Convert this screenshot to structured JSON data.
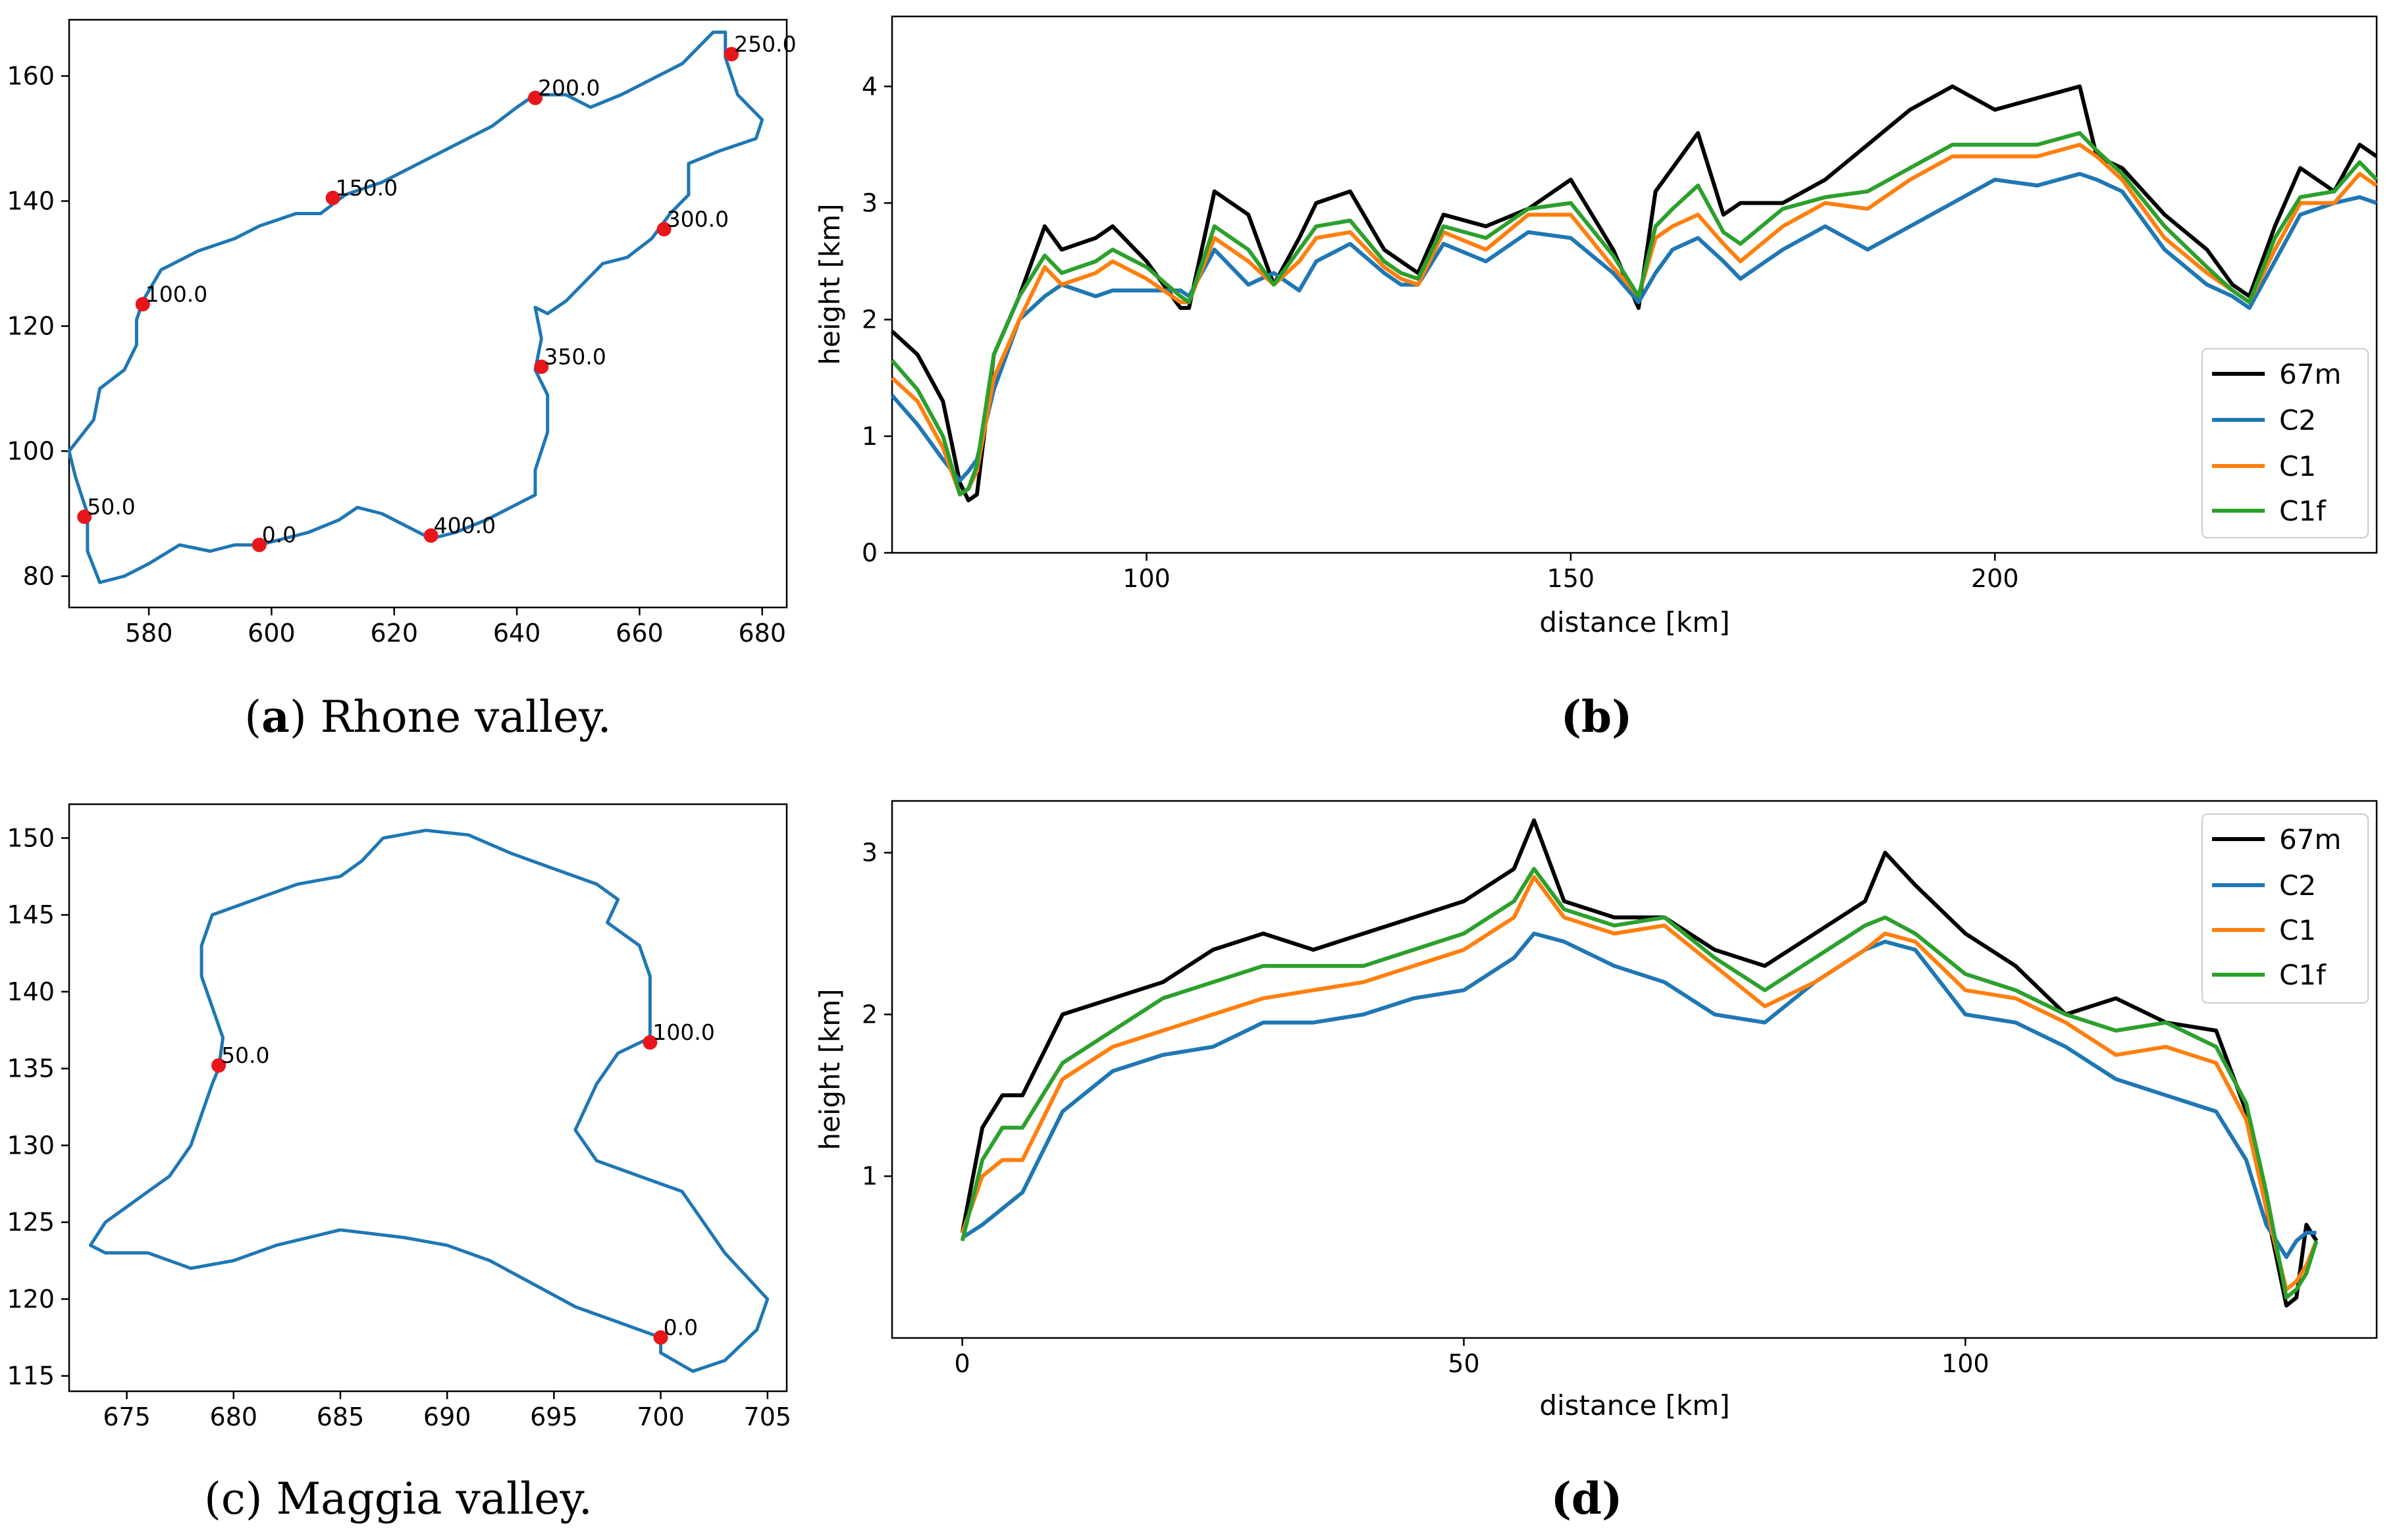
{
  "chart_data": [
    {
      "id": "a",
      "type": "line",
      "caption_letter": "a",
      "caption_text": "Rhone valley.",
      "xlabel": "",
      "ylabel": "",
      "xlim": [
        567,
        684
      ],
      "ylim": [
        75,
        169
      ],
      "xticks": [
        580,
        600,
        620,
        640,
        660,
        680
      ],
      "yticks": [
        80,
        100,
        120,
        140,
        160
      ],
      "series_color": "#1f77b4",
      "path": [
        [
          598,
          85
        ],
        [
          594,
          85
        ],
        [
          590,
          84
        ],
        [
          585,
          85
        ],
        [
          580,
          82
        ],
        [
          576,
          80
        ],
        [
          572,
          79
        ],
        [
          570,
          84
        ],
        [
          570,
          90
        ],
        [
          568,
          96
        ],
        [
          567,
          100
        ],
        [
          571,
          105
        ],
        [
          572,
          110
        ],
        [
          576,
          113
        ],
        [
          578,
          117
        ],
        [
          578,
          121
        ],
        [
          579,
          124
        ],
        [
          582,
          129
        ],
        [
          588,
          132
        ],
        [
          594,
          134
        ],
        [
          598,
          136
        ],
        [
          604,
          138
        ],
        [
          608,
          138
        ],
        [
          612,
          141
        ],
        [
          618,
          143
        ],
        [
          624,
          146
        ],
        [
          630,
          149
        ],
        [
          636,
          152
        ],
        [
          640,
          155
        ],
        [
          643,
          157
        ],
        [
          648,
          157
        ],
        [
          652,
          155
        ],
        [
          657,
          157
        ],
        [
          663,
          160
        ],
        [
          667,
          162
        ],
        [
          670,
          165
        ],
        [
          672,
          167
        ],
        [
          674,
          167
        ],
        [
          674,
          163
        ],
        [
          676,
          157
        ],
        [
          680,
          153
        ],
        [
          679,
          150
        ],
        [
          673,
          148
        ],
        [
          668,
          146
        ],
        [
          668,
          141
        ],
        [
          665,
          138
        ],
        [
          662,
          134
        ],
        [
          658,
          131
        ],
        [
          654,
          130
        ],
        [
          651,
          127
        ],
        [
          648,
          124
        ],
        [
          645,
          122
        ],
        [
          643,
          123
        ],
        [
          644,
          118
        ],
        [
          643,
          113
        ],
        [
          645,
          109
        ],
        [
          645,
          103
        ],
        [
          643,
          97
        ],
        [
          643,
          93
        ],
        [
          639,
          91
        ],
        [
          635,
          89
        ],
        [
          630,
          87
        ],
        [
          626,
          86
        ],
        [
          622,
          88
        ],
        [
          618,
          90
        ],
        [
          614,
          91
        ],
        [
          611,
          89
        ],
        [
          606,
          87
        ],
        [
          602,
          86
        ],
        [
          598,
          85
        ]
      ],
      "points": [
        {
          "x": 598,
          "y": 85,
          "label": "0.0"
        },
        {
          "x": 569.5,
          "y": 89.5,
          "label": "50.0"
        },
        {
          "x": 579,
          "y": 123.5,
          "label": "100.0"
        },
        {
          "x": 610,
          "y": 140.5,
          "label": "150.0"
        },
        {
          "x": 643,
          "y": 156.5,
          "label": "200.0"
        },
        {
          "x": 675,
          "y": 163.5,
          "label": "250.0"
        },
        {
          "x": 664,
          "y": 135.5,
          "label": "300.0"
        },
        {
          "x": 644,
          "y": 113.5,
          "label": "350.0"
        },
        {
          "x": 626,
          "y": 86.5,
          "label": "400.0"
        }
      ]
    },
    {
      "id": "b",
      "type": "line",
      "caption_letter": "b",
      "caption_text": "",
      "xlabel": "distance [km]",
      "ylabel": "height [km]",
      "xlim": [
        70,
        245
      ],
      "ylim": [
        0,
        4.6
      ],
      "xticks": [
        100,
        150,
        200
      ],
      "yticks": [
        0,
        1,
        2,
        3,
        4
      ],
      "x": [
        70,
        73,
        76,
        78,
        79,
        80,
        82,
        85,
        88,
        90,
        94,
        96,
        100,
        104,
        105,
        108,
        112,
        115,
        118,
        120,
        124,
        128,
        130,
        132,
        135,
        140,
        145,
        150,
        155,
        158,
        160,
        162,
        165,
        168,
        170,
        175,
        180,
        185,
        190,
        195,
        200,
        205,
        210,
        212,
        215,
        220,
        225,
        228,
        230,
        233,
        236,
        240,
        243,
        245
      ],
      "legend": {
        "position": "lower right",
        "entries": [
          "67m",
          "C2",
          "C1",
          "C1f"
        ]
      },
      "series": [
        {
          "name": "67m",
          "color": "#000000",
          "values": [
            1.9,
            1.7,
            1.3,
            0.6,
            0.45,
            0.5,
            1.7,
            2.2,
            2.8,
            2.6,
            2.7,
            2.8,
            2.5,
            2.1,
            2.1,
            3.1,
            2.9,
            2.3,
            2.7,
            3.0,
            3.1,
            2.6,
            2.5,
            2.4,
            2.9,
            2.8,
            2.95,
            3.2,
            2.6,
            2.1,
            3.1,
            3.3,
            3.6,
            2.9,
            3.0,
            3.0,
            3.2,
            3.5,
            3.8,
            4.0,
            3.8,
            3.9,
            4.0,
            3.4,
            3.3,
            2.9,
            2.6,
            2.3,
            2.2,
            2.8,
            3.3,
            3.1,
            3.5,
            3.4
          ]
        },
        {
          "name": "C2",
          "color": "#1f77b4",
          "values": [
            1.35,
            1.1,
            0.8,
            0.62,
            0.7,
            0.8,
            1.4,
            2.0,
            2.2,
            2.3,
            2.2,
            2.25,
            2.25,
            2.25,
            2.2,
            2.6,
            2.3,
            2.4,
            2.25,
            2.5,
            2.65,
            2.4,
            2.3,
            2.3,
            2.65,
            2.5,
            2.75,
            2.7,
            2.4,
            2.15,
            2.4,
            2.6,
            2.7,
            2.5,
            2.35,
            2.6,
            2.8,
            2.6,
            2.8,
            3.0,
            3.2,
            3.15,
            3.25,
            3.2,
            3.1,
            2.6,
            2.3,
            2.2,
            2.1,
            2.5,
            2.9,
            3.0,
            3.05,
            3.0
          ]
        },
        {
          "name": "C1",
          "color": "#ff7f0e",
          "values": [
            1.5,
            1.3,
            0.9,
            0.5,
            0.55,
            0.7,
            1.5,
            2.0,
            2.45,
            2.3,
            2.4,
            2.5,
            2.35,
            2.15,
            2.15,
            2.7,
            2.5,
            2.3,
            2.5,
            2.7,
            2.75,
            2.45,
            2.35,
            2.3,
            2.75,
            2.6,
            2.9,
            2.9,
            2.45,
            2.2,
            2.7,
            2.8,
            2.9,
            2.65,
            2.5,
            2.8,
            3.0,
            2.95,
            3.2,
            3.4,
            3.4,
            3.4,
            3.5,
            3.4,
            3.2,
            2.7,
            2.4,
            2.25,
            2.15,
            2.6,
            3.0,
            3.0,
            3.25,
            3.15
          ]
        },
        {
          "name": "C1f",
          "color": "#2ca02c",
          "values": [
            1.65,
            1.4,
            1.0,
            0.5,
            0.55,
            0.75,
            1.7,
            2.2,
            2.55,
            2.4,
            2.5,
            2.6,
            2.45,
            2.2,
            2.15,
            2.8,
            2.6,
            2.3,
            2.6,
            2.8,
            2.85,
            2.5,
            2.4,
            2.35,
            2.8,
            2.7,
            2.95,
            3.0,
            2.55,
            2.2,
            2.8,
            2.95,
            3.15,
            2.75,
            2.65,
            2.95,
            3.05,
            3.1,
            3.3,
            3.5,
            3.5,
            3.5,
            3.6,
            3.45,
            3.25,
            2.8,
            2.45,
            2.25,
            2.15,
            2.7,
            3.05,
            3.1,
            3.35,
            3.2
          ]
        }
      ]
    },
    {
      "id": "c",
      "type": "line",
      "caption_letter": "c",
      "caption_text": "Maggia valley.",
      "xlabel": "",
      "ylabel": "",
      "xlim": [
        672.3,
        705.9
      ],
      "ylim": [
        114,
        152.2
      ],
      "xticks": [
        675,
        680,
        685,
        690,
        695,
        700,
        705
      ],
      "yticks": [
        115,
        120,
        125,
        130,
        135,
        140,
        145,
        150
      ],
      "series_color": "#1f77b4",
      "path": [
        [
          700,
          117.5
        ],
        [
          698,
          118.5
        ],
        [
          696,
          119.5
        ],
        [
          694,
          121
        ],
        [
          692,
          122.5
        ],
        [
          690,
          123.5
        ],
        [
          688,
          124
        ],
        [
          685,
          124.5
        ],
        [
          682,
          123.5
        ],
        [
          680,
          122.5
        ],
        [
          678,
          122
        ],
        [
          676,
          123
        ],
        [
          674,
          123
        ],
        [
          673.3,
          123.5
        ],
        [
          674,
          125
        ],
        [
          675,
          126
        ],
        [
          676,
          127
        ],
        [
          677,
          128
        ],
        [
          678,
          130
        ],
        [
          678.5,
          132
        ],
        [
          679,
          134
        ],
        [
          679.3,
          135
        ],
        [
          679.5,
          137
        ],
        [
          679,
          139
        ],
        [
          678.5,
          141
        ],
        [
          678.5,
          143
        ],
        [
          679,
          145
        ],
        [
          681,
          146
        ],
        [
          683,
          147
        ],
        [
          685,
          147.5
        ],
        [
          686,
          148.5
        ],
        [
          687,
          150
        ],
        [
          689,
          150.5
        ],
        [
          691,
          150.2
        ],
        [
          693,
          149
        ],
        [
          695,
          148
        ],
        [
          697,
          147
        ],
        [
          698,
          146
        ],
        [
          697.5,
          144.5
        ],
        [
          699,
          143
        ],
        [
          699.5,
          141
        ],
        [
          699.5,
          139
        ],
        [
          699.5,
          137
        ],
        [
          698,
          136
        ],
        [
          697,
          134
        ],
        [
          696,
          131
        ],
        [
          697,
          129
        ],
        [
          699,
          128
        ],
        [
          701,
          127
        ],
        [
          702,
          125
        ],
        [
          703,
          123
        ],
        [
          704,
          121.5
        ],
        [
          705,
          120
        ],
        [
          704.5,
          118
        ],
        [
          703,
          116
        ],
        [
          701.5,
          115.3
        ],
        [
          700,
          116.5
        ],
        [
          700,
          117.5
        ]
      ],
      "points": [
        {
          "x": 700,
          "y": 117.5,
          "label": "0.0"
        },
        {
          "x": 679.3,
          "y": 135.2,
          "label": "50.0"
        },
        {
          "x": 699.5,
          "y": 136.7,
          "label": "100.0"
        }
      ]
    },
    {
      "id": "d",
      "type": "line",
      "caption_letter": "d",
      "caption_text": "",
      "xlabel": "distance [km]",
      "ylabel": "height [km]",
      "xlim": [
        -7,
        141
      ],
      "ylim": [
        0,
        3.32
      ],
      "xticks": [
        0,
        50,
        100
      ],
      "yticks": [
        1,
        2,
        3
      ],
      "x": [
        0,
        2,
        4,
        6,
        10,
        15,
        20,
        25,
        30,
        35,
        40,
        45,
        50,
        55,
        57,
        60,
        65,
        70,
        75,
        80,
        85,
        90,
        92,
        95,
        100,
        105,
        110,
        115,
        120,
        125,
        128,
        130,
        132,
        133,
        134,
        135
      ],
      "legend": {
        "position": "upper right",
        "entries": [
          "67m",
          "C2",
          "C1",
          "C1f"
        ]
      },
      "series": [
        {
          "name": "67m",
          "color": "#000000",
          "values": [
            0.65,
            1.3,
            1.5,
            1.5,
            2.0,
            2.1,
            2.2,
            2.4,
            2.5,
            2.4,
            2.5,
            2.6,
            2.7,
            2.9,
            3.2,
            2.7,
            2.6,
            2.6,
            2.4,
            2.3,
            2.5,
            2.7,
            3.0,
            2.8,
            2.5,
            2.3,
            2.0,
            2.1,
            1.95,
            1.9,
            1.4,
            0.8,
            0.2,
            0.25,
            0.7,
            0.6
          ]
        },
        {
          "name": "C2",
          "color": "#1f77b4",
          "values": [
            0.62,
            0.7,
            0.8,
            0.9,
            1.4,
            1.65,
            1.75,
            1.8,
            1.95,
            1.95,
            2.0,
            2.1,
            2.15,
            2.35,
            2.5,
            2.45,
            2.3,
            2.2,
            2.0,
            1.95,
            2.2,
            2.4,
            2.45,
            2.4,
            2.0,
            1.95,
            1.8,
            1.6,
            1.5,
            1.4,
            1.1,
            0.7,
            0.5,
            0.6,
            0.65,
            0.65
          ]
        },
        {
          "name": "C1",
          "color": "#ff7f0e",
          "values": [
            0.65,
            1.0,
            1.1,
            1.1,
            1.6,
            1.8,
            1.9,
            2.0,
            2.1,
            2.15,
            2.2,
            2.3,
            2.4,
            2.6,
            2.85,
            2.6,
            2.5,
            2.55,
            2.3,
            2.05,
            2.2,
            2.4,
            2.5,
            2.45,
            2.15,
            2.1,
            1.95,
            1.75,
            1.8,
            1.7,
            1.35,
            0.8,
            0.3,
            0.35,
            0.45,
            0.6
          ]
        },
        {
          "name": "C1f",
          "color": "#2ca02c",
          "values": [
            0.6,
            1.1,
            1.3,
            1.3,
            1.7,
            1.9,
            2.1,
            2.2,
            2.3,
            2.3,
            2.3,
            2.4,
            2.5,
            2.7,
            2.9,
            2.65,
            2.55,
            2.6,
            2.35,
            2.15,
            2.35,
            2.55,
            2.6,
            2.5,
            2.25,
            2.15,
            2.0,
            1.9,
            1.95,
            1.8,
            1.45,
            0.9,
            0.25,
            0.3,
            0.4,
            0.6
          ]
        }
      ]
    }
  ]
}
